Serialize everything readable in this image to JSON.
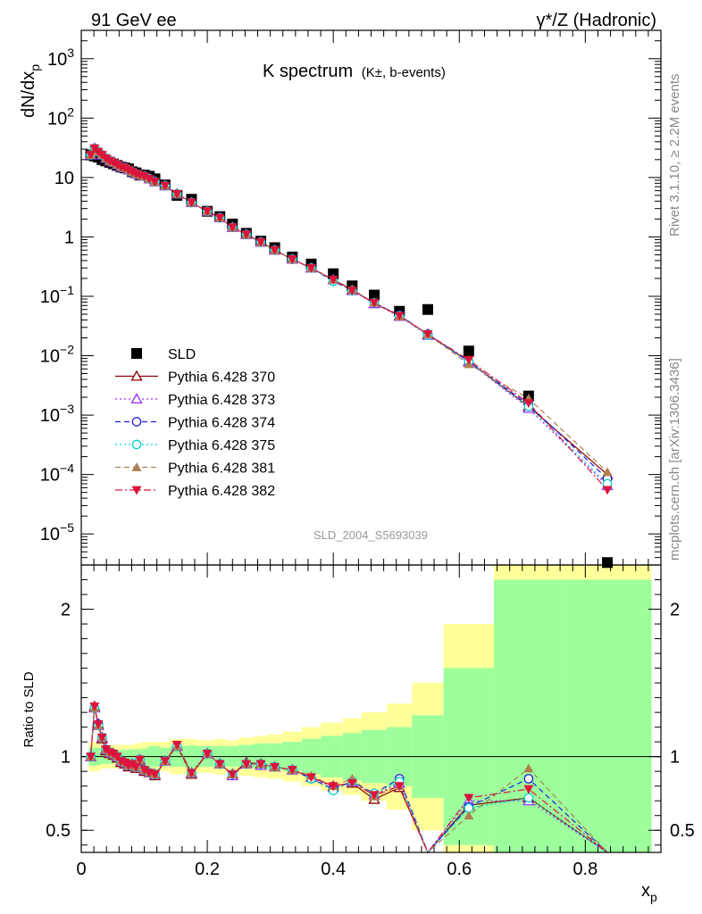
{
  "header": {
    "left": "91 GeV ee",
    "right": "γ*/Z (Hadronic)"
  },
  "side": {
    "rivet": "Rivet 3.1.10, ≥ 2.2M events",
    "mcplots": "mcplots.cern.ch [arXiv:1306.3436]"
  },
  "chart_data": [
    {
      "type": "scatter",
      "panel": "main",
      "title": "K spectrum",
      "title_sub": "(K±, b-events)",
      "analysis_label": "SLD_2004_S5693039",
      "ylabel": "dN/dx",
      "ylabel_sub": "p",
      "yscale": "log",
      "ylim": [
        3e-06,
        3000
      ],
      "xlim": [
        0,
        0.92
      ],
      "y_ticks": [
        {
          "v": 1e-05,
          "base": "10",
          "exp": "−5"
        },
        {
          "v": 0.0001,
          "base": "10",
          "exp": "−4"
        },
        {
          "v": 0.001,
          "base": "10",
          "exp": "−3"
        },
        {
          "v": 0.01,
          "base": "10",
          "exp": "−2"
        },
        {
          "v": 0.1,
          "base": "10",
          "exp": "−1"
        },
        {
          "v": 1,
          "base": "1",
          "exp": ""
        },
        {
          "v": 10,
          "base": "10",
          "exp": ""
        },
        {
          "v": 100,
          "base": "10",
          "exp": "2"
        },
        {
          "v": 1000,
          "base": "10",
          "exp": "3"
        }
      ],
      "x": [
        0.015,
        0.021,
        0.027,
        0.033,
        0.039,
        0.045,
        0.051,
        0.057,
        0.063,
        0.069,
        0.075,
        0.081,
        0.087,
        0.093,
        0.1,
        0.108,
        0.117,
        0.133,
        0.152,
        0.175,
        0.2,
        0.22,
        0.24,
        0.262,
        0.285,
        0.307,
        0.335,
        0.365,
        0.4,
        0.43,
        0.465,
        0.505,
        0.55,
        0.615,
        0.71,
        0.835
      ],
      "series": [
        {
          "name": "SLD",
          "color": "#000000",
          "marker": "square",
          "y": [
            24,
            23,
            22,
            20,
            19,
            18,
            17,
            16,
            15,
            14.5,
            14,
            12.5,
            12,
            11,
            11,
            10.5,
            9.5,
            7.5,
            5,
            4.3,
            2.7,
            2.2,
            1.65,
            1.15,
            0.85,
            0.66,
            0.46,
            0.35,
            0.24,
            0.15,
            0.105,
            0.056,
            0.06,
            0.012,
            0.0021,
            3.3e-06
          ]
        },
        {
          "name": "Pythia 6.428 370",
          "color": "#8b0000",
          "marker": "triangle-open",
          "dash": "",
          "y": [
            24,
            31,
            27,
            24,
            21,
            19,
            18,
            16.5,
            15,
            14.5,
            13.5,
            12.5,
            11.5,
            11,
            10.5,
            9.5,
            8.5,
            7.3,
            5.3,
            3.8,
            2.7,
            2.1,
            1.45,
            1.1,
            0.82,
            0.6,
            0.42,
            0.3,
            0.19,
            0.13,
            0.076,
            0.047,
            0.023,
            0.008,
            0.0014,
            0.0001
          ]
        },
        {
          "name": "Pythia 6.428 373",
          "color": "#9b30ff",
          "marker": "triangle-open",
          "dash": "2,3",
          "y": [
            24,
            31,
            27,
            24,
            21,
            19,
            18,
            16.5,
            15,
            14.5,
            13.5,
            12.5,
            11.5,
            11,
            10.5,
            9.5,
            8.5,
            7.3,
            5.3,
            3.8,
            2.7,
            2.1,
            1.45,
            1.1,
            0.82,
            0.6,
            0.42,
            0.3,
            0.19,
            0.125,
            0.075,
            0.046,
            0.022,
            0.0078,
            0.0013,
            6.5e-05
          ]
        },
        {
          "name": "Pythia 6.428 374",
          "color": "#1e1ee6",
          "marker": "circle-open",
          "dash": "6,4",
          "y": [
            24,
            31,
            27,
            24,
            21,
            19,
            18,
            16.5,
            15,
            14.5,
            13.5,
            12.5,
            11.5,
            11,
            10.5,
            9.5,
            8.5,
            7.3,
            5.3,
            3.8,
            2.7,
            2.1,
            1.45,
            1.1,
            0.82,
            0.6,
            0.42,
            0.3,
            0.18,
            0.125,
            0.078,
            0.048,
            0.023,
            0.008,
            0.0015,
            8.5e-05
          ]
        },
        {
          "name": "Pythia 6.428 375",
          "color": "#00d2c8",
          "marker": "circle-open",
          "dash": "2,3",
          "y": [
            24,
            31,
            27,
            24,
            21,
            19,
            18,
            16.5,
            15,
            14.5,
            13.5,
            12.5,
            11.5,
            11,
            10.5,
            9.5,
            8.5,
            7.3,
            5.3,
            3.8,
            2.7,
            2.1,
            1.45,
            1.1,
            0.82,
            0.6,
            0.42,
            0.3,
            0.18,
            0.125,
            0.078,
            0.047,
            0.022,
            0.008,
            0.0014,
            7e-05
          ]
        },
        {
          "name": "Pythia 6.428 381",
          "color": "#b08050",
          "marker": "triangle-filled",
          "dash": "6,4",
          "y": [
            24,
            31,
            27,
            24,
            21,
            19,
            18,
            16.5,
            15,
            14.5,
            13.5,
            12.5,
            11.5,
            11,
            10.5,
            9.5,
            8.5,
            7.3,
            5.3,
            3.8,
            2.7,
            2.1,
            1.45,
            1.1,
            0.82,
            0.6,
            0.42,
            0.3,
            0.19,
            0.128,
            0.078,
            0.046,
            0.023,
            0.0072,
            0.0019,
            0.00011
          ]
        },
        {
          "name": "Pythia 6.428 382",
          "color": "#dc143c",
          "marker": "triangledown-filled",
          "dash": "8,3,2,3",
          "y": [
            24,
            31,
            27,
            24,
            21,
            19,
            18,
            16.5,
            15,
            14.5,
            13.5,
            12.5,
            11.5,
            11,
            10.5,
            9.5,
            8.5,
            7.3,
            5.3,
            3.8,
            2.7,
            2.1,
            1.45,
            1.1,
            0.82,
            0.6,
            0.42,
            0.3,
            0.19,
            0.125,
            0.078,
            0.047,
            0.023,
            0.0085,
            0.0016,
            5.5e-05
          ]
        }
      ]
    },
    {
      "type": "line",
      "panel": "ratio",
      "ylabel": "Ratio to SLD",
      "xlabel": "x",
      "xlabel_sub": "p",
      "ylim": [
        0.35,
        2.3
      ],
      "xlim": [
        0,
        0.92
      ],
      "x_ticks": [
        0,
        0.2,
        0.4,
        0.6,
        0.8
      ],
      "x_tick_labels": [
        "0",
        "0.2",
        "0.4",
        "0.6",
        "0.8"
      ],
      "y_ticks": [
        0.5,
        1,
        2
      ],
      "y_tick_labels": [
        "0.5",
        "1",
        "2"
      ],
      "bands": {
        "edges": [
          0.012,
          0.03,
          0.048,
          0.06,
          0.072,
          0.084,
          0.096,
          0.105,
          0.125,
          0.14,
          0.165,
          0.185,
          0.21,
          0.23,
          0.25,
          0.275,
          0.295,
          0.32,
          0.35,
          0.38,
          0.415,
          0.445,
          0.485,
          0.525,
          0.575,
          0.655,
          0.765,
          0.905
        ],
        "green_half": [
          0.06,
          0.05,
          0.045,
          0.045,
          0.05,
          0.05,
          0.055,
          0.07,
          0.06,
          0.07,
          0.075,
          0.07,
          0.07,
          0.07,
          0.08,
          0.09,
          0.09,
          0.1,
          0.12,
          0.14,
          0.16,
          0.18,
          0.2,
          0.28,
          0.6,
          1.2,
          1.2
        ],
        "yellow_half": [
          0.1,
          0.08,
          0.08,
          0.08,
          0.08,
          0.09,
          0.1,
          0.1,
          0.1,
          0.12,
          0.12,
          0.11,
          0.12,
          0.11,
          0.13,
          0.14,
          0.15,
          0.17,
          0.2,
          0.23,
          0.26,
          0.3,
          0.36,
          0.5,
          0.9,
          2.0,
          2.0
        ],
        "green_color": "#9cff9c",
        "yellow_color": "#ffff99"
      },
      "series": [
        {
          "name": "Pythia 6.428 370",
          "color": "#8b0000",
          "marker": "triangle-open",
          "dash": "",
          "y": [
            1.0,
            1.34,
            1.22,
            1.12,
            1.04,
            1.02,
            1.01,
            0.99,
            0.96,
            0.95,
            0.93,
            0.94,
            0.92,
            0.97,
            0.9,
            0.89,
            0.87,
            0.97,
            1.07,
            0.88,
            1.02,
            0.95,
            0.88,
            0.96,
            0.95,
            0.93,
            0.91,
            0.86,
            0.8,
            0.82,
            0.71,
            0.79,
            0.3,
            0.67,
            0.72,
            0.3
          ]
        },
        {
          "name": "Pythia 6.428 373",
          "color": "#9b30ff",
          "marker": "triangle-open",
          "dash": "2,3",
          "y": [
            1.0,
            1.33,
            1.21,
            1.13,
            1.05,
            1.03,
            1.02,
            1.0,
            0.97,
            0.96,
            0.94,
            0.95,
            0.93,
            0.98,
            0.91,
            0.89,
            0.88,
            0.97,
            1.07,
            0.89,
            1.02,
            0.95,
            0.87,
            0.95,
            0.94,
            0.93,
            0.91,
            0.86,
            0.79,
            0.83,
            0.74,
            0.82,
            0.28,
            0.7,
            0.7,
            0.3
          ]
        },
        {
          "name": "Pythia 6.428 374",
          "color": "#1e1ee6",
          "marker": "circle-open",
          "dash": "6,4",
          "y": [
            1.0,
            1.33,
            1.22,
            1.13,
            1.05,
            1.03,
            1.02,
            1.0,
            0.97,
            0.96,
            0.94,
            0.95,
            0.93,
            0.98,
            0.91,
            0.89,
            0.88,
            0.97,
            1.07,
            0.89,
            1.02,
            0.95,
            0.88,
            0.95,
            0.95,
            0.93,
            0.91,
            0.85,
            0.78,
            0.83,
            0.75,
            0.85,
            0.28,
            0.66,
            0.85,
            0.3
          ]
        },
        {
          "name": "Pythia 6.428 375",
          "color": "#00d2c8",
          "marker": "circle-open",
          "dash": "2,3",
          "y": [
            1.0,
            1.33,
            1.21,
            1.13,
            1.05,
            1.03,
            1.02,
            1.0,
            0.97,
            0.96,
            0.94,
            0.95,
            0.93,
            0.98,
            0.91,
            0.89,
            0.88,
            0.97,
            1.07,
            0.89,
            1.02,
            0.95,
            0.88,
            0.95,
            0.95,
            0.93,
            0.91,
            0.85,
            0.77,
            0.83,
            0.75,
            0.83,
            0.27,
            0.65,
            0.72,
            0.3
          ]
        },
        {
          "name": "Pythia 6.428 381",
          "color": "#b08050",
          "marker": "triangle-filled",
          "dash": "6,4",
          "y": [
            1.0,
            1.33,
            1.21,
            1.13,
            1.05,
            1.03,
            1.02,
            1.0,
            0.97,
            0.96,
            0.94,
            0.95,
            0.93,
            0.98,
            0.91,
            0.89,
            0.88,
            0.97,
            1.07,
            0.89,
            1.02,
            0.95,
            0.88,
            0.95,
            0.95,
            0.93,
            0.91,
            0.87,
            0.8,
            0.85,
            0.73,
            0.8,
            0.3,
            0.6,
            0.92,
            0.3
          ]
        },
        {
          "name": "Pythia 6.428 382",
          "color": "#dc143c",
          "marker": "triangledown-filled",
          "dash": "8,3,2,3",
          "y": [
            1.0,
            1.34,
            1.22,
            1.13,
            1.05,
            1.03,
            1.02,
            1.0,
            0.97,
            0.96,
            0.94,
            0.95,
            0.93,
            0.98,
            0.91,
            0.89,
            0.88,
            0.97,
            1.08,
            0.89,
            1.02,
            0.95,
            0.88,
            0.95,
            0.95,
            0.93,
            0.91,
            0.86,
            0.8,
            0.82,
            0.74,
            0.8,
            0.3,
            0.72,
            0.78,
            0.3
          ]
        }
      ]
    }
  ]
}
